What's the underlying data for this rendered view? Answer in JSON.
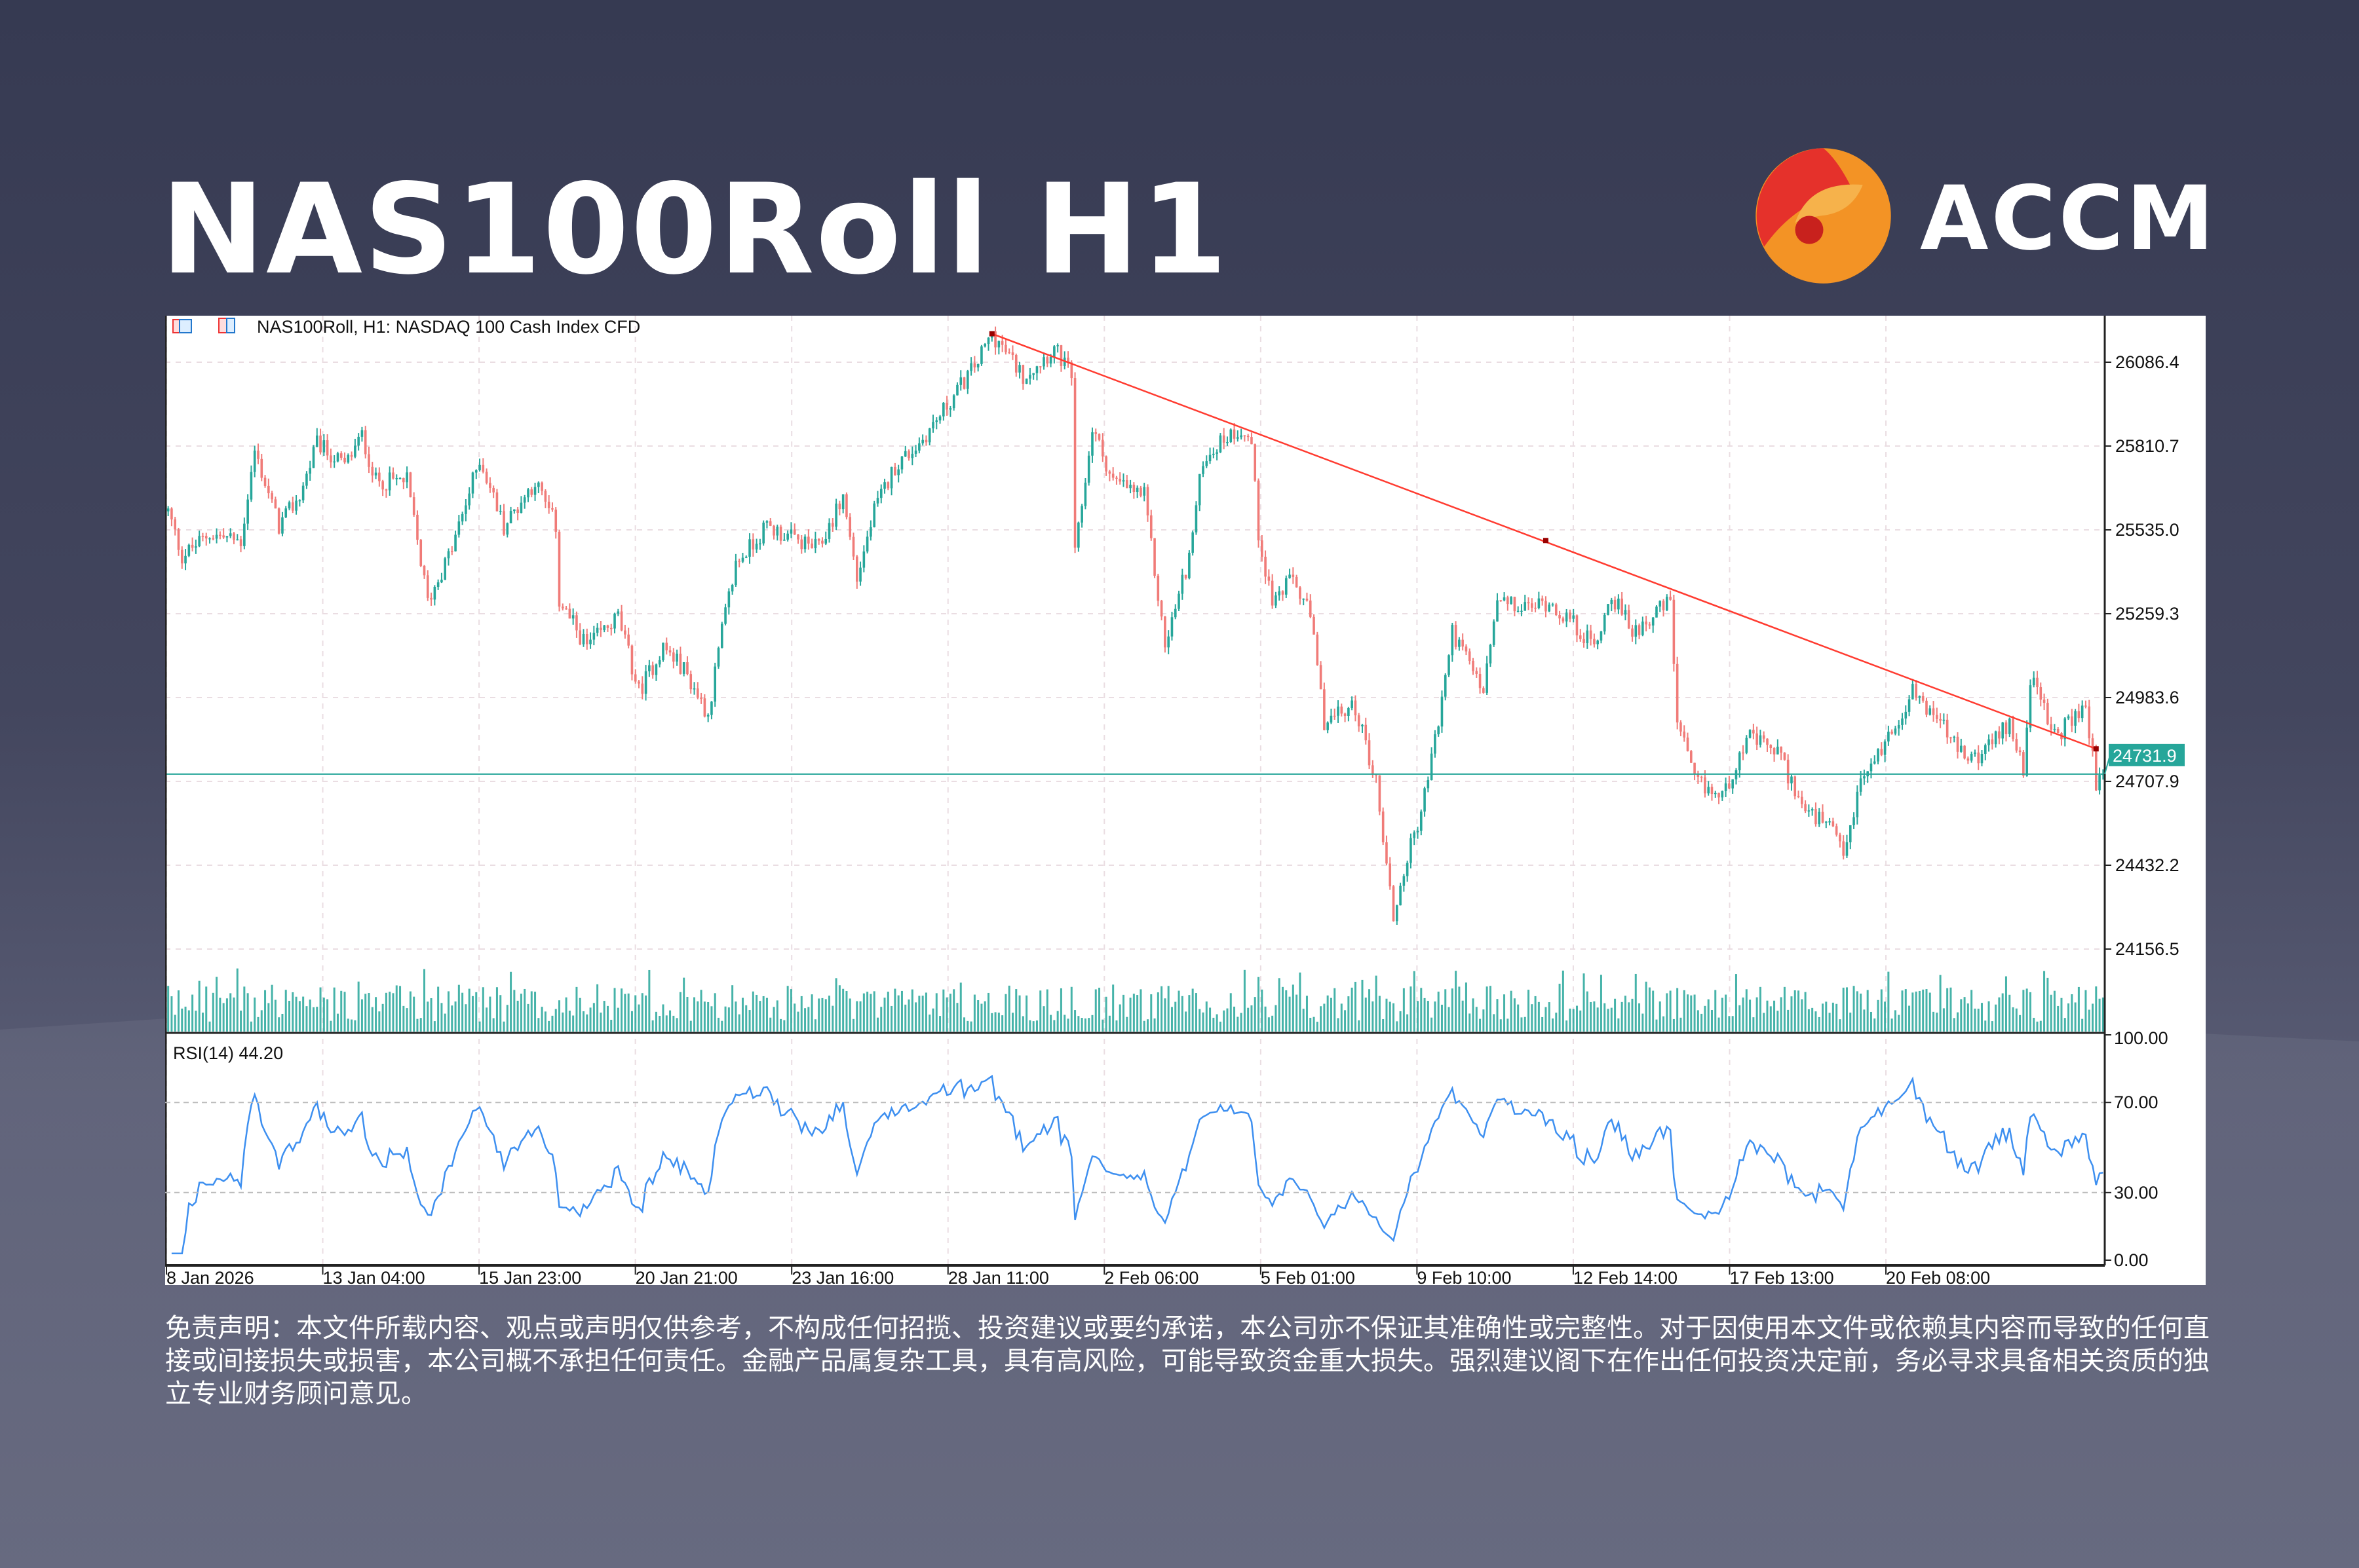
{
  "title": "NAS100Roll H1",
  "brand": {
    "name": "ACCM",
    "colors": {
      "red": "#e5312b",
      "orange": "#f39325"
    }
  },
  "chart_header": {
    "symbol_info": "NAS100Roll, H1:  NASDAQ 100 Cash Index CFD",
    "icons": [
      "bars-icon",
      "template-icon"
    ]
  },
  "disclaimer": "免责声明：本文件所载内容、观点或声明仅供参考，不构成任何招揽、投资建议或要约承诺，本公司亦不保证其准确性或完整性。对于因使用本文件或依赖其内容而导致的任何直接或间接损失或损害，本公司概不承担任何责任。金融产品属复杂工具，具有高风险，可能导致资金重大损失。强烈建议阁下在作出任何投资决定前，务必寻求具备相关资质的独立专业财务顾问意见。",
  "chart_data": [
    {
      "type": "candlestick",
      "timeframe": "H1",
      "bars": 560,
      "price_ticks": [
        "26086.4",
        "25810.7",
        "25535.0",
        "25259.3",
        "24983.6",
        "24707.9",
        "24432.2",
        "24156.5"
      ],
      "ylim": [
        23885,
        26239
      ],
      "x_ticks": [
        "8 Jan 2026",
        "13 Jan 04:00",
        "15 Jan 23:00",
        "20 Jan 21:00",
        "23 Jan 16:00",
        "28 Jan 11:00",
        "2 Feb 06:00",
        "5 Feb 01:00",
        "9 Feb 10:00",
        "12 Feb 14:00",
        "17 Feb 13:00",
        "20 Feb 08:00"
      ],
      "current_price": "24731.9",
      "current_price_color": "#26a69a",
      "up_color": "#26a69a",
      "down_color": "#f07b78",
      "grid": true,
      "close_path": [
        [
          0,
          25596
        ],
        [
          4,
          25448
        ],
        [
          12,
          25522
        ],
        [
          21,
          25497
        ],
        [
          25,
          25794
        ],
        [
          32,
          25547
        ],
        [
          38,
          25646
        ],
        [
          43,
          25819
        ],
        [
          51,
          25745
        ],
        [
          56,
          25844
        ],
        [
          60,
          25695
        ],
        [
          69,
          25695
        ],
        [
          75,
          25299
        ],
        [
          82,
          25473
        ],
        [
          90,
          25770
        ],
        [
          97,
          25547
        ],
        [
          106,
          25695
        ],
        [
          112,
          25547
        ],
        [
          113,
          25299
        ],
        [
          121,
          25151
        ],
        [
          130,
          25250
        ],
        [
          136,
          25003
        ],
        [
          143,
          25151
        ],
        [
          149,
          25077
        ],
        [
          156,
          24928
        ],
        [
          160,
          25201
        ],
        [
          164,
          25423
        ],
        [
          173,
          25547
        ],
        [
          182,
          25497
        ],
        [
          188,
          25473
        ],
        [
          195,
          25646
        ],
        [
          199,
          25374
        ],
        [
          204,
          25596
        ],
        [
          210,
          25745
        ],
        [
          217,
          25819
        ],
        [
          225,
          25943
        ],
        [
          234,
          26091
        ],
        [
          238,
          26180
        ],
        [
          247,
          26042
        ],
        [
          256,
          26131
        ],
        [
          261,
          26042
        ],
        [
          262,
          25448
        ],
        [
          267,
          25869
        ],
        [
          273,
          25695
        ],
        [
          282,
          25646
        ],
        [
          288,
          25151
        ],
        [
          295,
          25448
        ],
        [
          299,
          25770
        ],
        [
          306,
          25844
        ],
        [
          310,
          25869
        ],
        [
          313,
          25819
        ],
        [
          315,
          25522
        ],
        [
          319,
          25299
        ],
        [
          325,
          25374
        ],
        [
          330,
          25250
        ],
        [
          334,
          24904
        ],
        [
          343,
          24953
        ],
        [
          349,
          24706
        ],
        [
          354,
          24260
        ],
        [
          358,
          24458
        ],
        [
          362,
          24607
        ],
        [
          367,
          24904
        ],
        [
          371,
          25201
        ],
        [
          380,
          25003
        ],
        [
          384,
          25299
        ],
        [
          391,
          25275
        ],
        [
          399,
          25299
        ],
        [
          406,
          25225
        ],
        [
          412,
          25151
        ],
        [
          417,
          25324
        ],
        [
          423,
          25201
        ],
        [
          434,
          25299
        ],
        [
          436,
          24904
        ],
        [
          441,
          24706
        ],
        [
          449,
          24656
        ],
        [
          456,
          24854
        ],
        [
          465,
          24805
        ],
        [
          473,
          24607
        ],
        [
          480,
          24557
        ],
        [
          484,
          24458
        ],
        [
          489,
          24706
        ],
        [
          497,
          24854
        ],
        [
          504,
          25003
        ],
        [
          512,
          24904
        ],
        [
          519,
          24780
        ],
        [
          525,
          24805
        ],
        [
          532,
          24904
        ],
        [
          536,
          24755
        ],
        [
          538,
          25052
        ],
        [
          545,
          24854
        ],
        [
          554,
          24953
        ],
        [
          557,
          24706
        ],
        [
          559,
          24731.9
        ]
      ],
      "trendline": {
        "color": "#ff3b30",
        "points": [
          [
            238,
            26180
          ],
          [
            398,
            25500
          ],
          [
            557,
            24815
          ]
        ]
      },
      "volume_color": "#26a69a"
    },
    {
      "type": "line",
      "indicator_label": "RSI(14) 44.20",
      "period": 14,
      "last_value": 44.2,
      "ylim": [
        0,
        100
      ],
      "ticks": [
        "100.00",
        "70.00",
        "30.00",
        "0.00"
      ],
      "levels": [
        70,
        30
      ],
      "line_color": "#3d8ff0"
    }
  ]
}
